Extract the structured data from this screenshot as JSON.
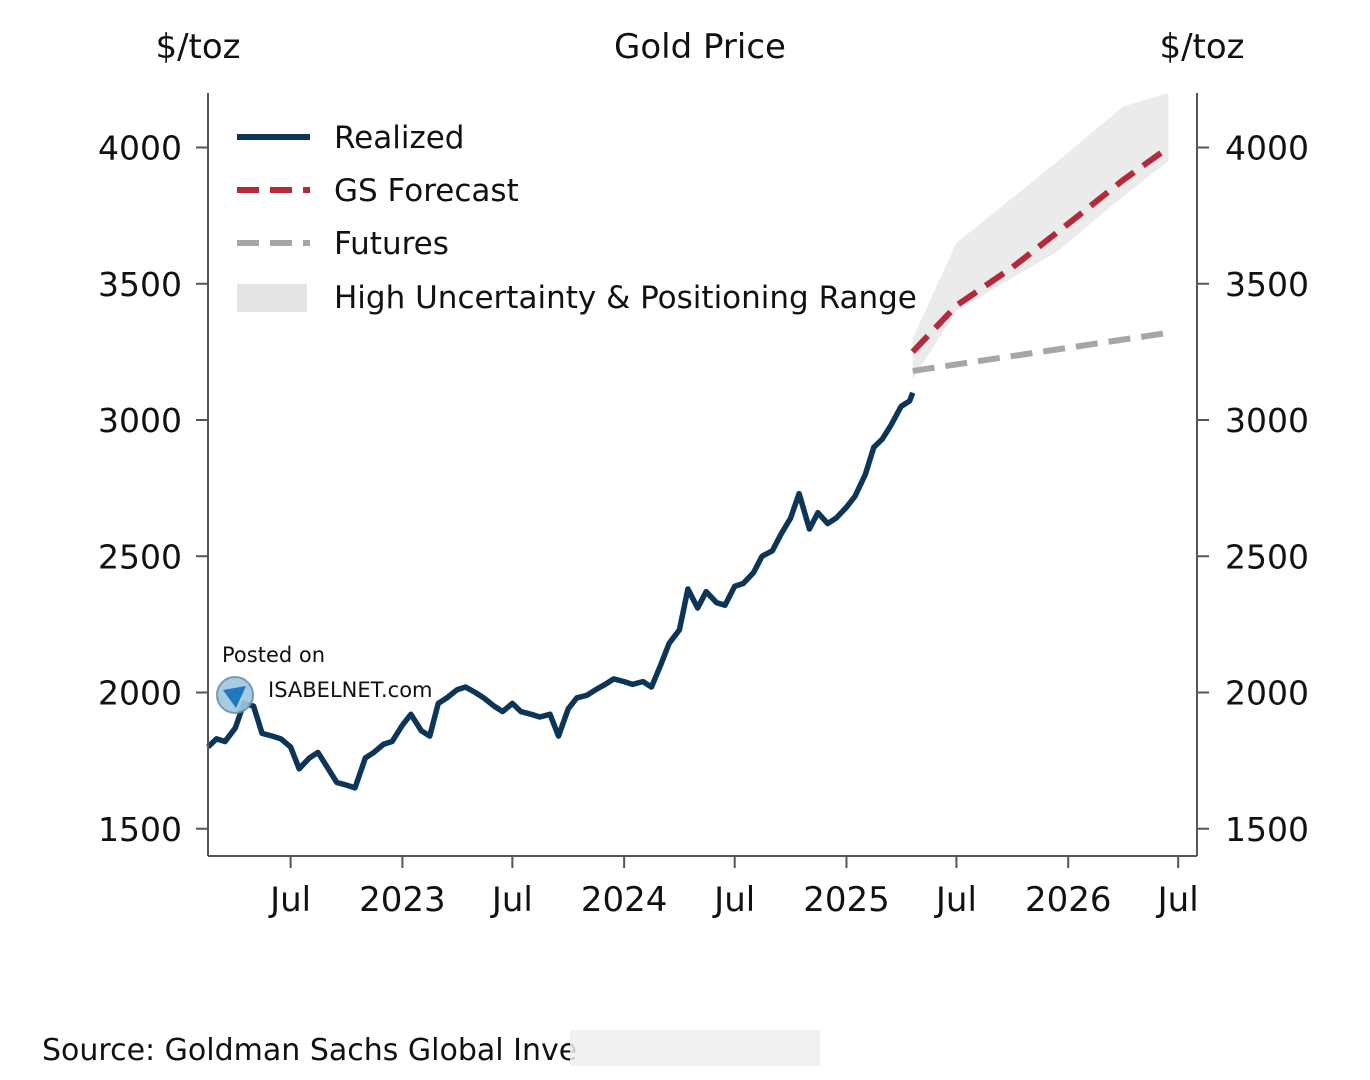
{
  "chart_data": {
    "type": "line",
    "title": "Gold Price",
    "ylabel_left": "$/toz",
    "ylabel_right": "$/toz",
    "ylim": [
      1400,
      4200
    ],
    "yticks": [
      1500,
      2000,
      2500,
      3000,
      3500,
      4000
    ],
    "xlim": [
      "2022-02-15",
      "2026-08-01"
    ],
    "xticks": [
      {
        "date": "2022-07-01",
        "label": "Jul"
      },
      {
        "date": "2023-01-01",
        "label": "2023"
      },
      {
        "date": "2023-07-01",
        "label": "Jul"
      },
      {
        "date": "2024-01-01",
        "label": "2024"
      },
      {
        "date": "2024-07-01",
        "label": "Jul"
      },
      {
        "date": "2025-01-01",
        "label": "2025"
      },
      {
        "date": "2025-07-01",
        "label": "Jul"
      },
      {
        "date": "2026-01-01",
        "label": "2026"
      },
      {
        "date": "2026-07-01",
        "label": "Jul"
      }
    ],
    "legend_position": "top-left",
    "grid": false,
    "series": [
      {
        "name": "Realized",
        "style": "solid",
        "color": "#0d3557",
        "x": [
          "2022-02-15",
          "2022-03-01",
          "2022-03-15",
          "2022-04-01",
          "2022-04-15",
          "2022-05-01",
          "2022-05-15",
          "2022-06-01",
          "2022-06-15",
          "2022-07-01",
          "2022-07-15",
          "2022-08-01",
          "2022-08-15",
          "2022-09-01",
          "2022-09-15",
          "2022-10-01",
          "2022-10-15",
          "2022-11-01",
          "2022-11-15",
          "2022-12-01",
          "2022-12-15",
          "2023-01-01",
          "2023-01-15",
          "2023-02-01",
          "2023-02-15",
          "2023-03-01",
          "2023-03-15",
          "2023-04-01",
          "2023-04-15",
          "2023-05-01",
          "2023-05-15",
          "2023-06-01",
          "2023-06-15",
          "2023-07-01",
          "2023-07-15",
          "2023-08-01",
          "2023-08-15",
          "2023-09-01",
          "2023-09-15",
          "2023-10-01",
          "2023-10-15",
          "2023-11-01",
          "2023-11-15",
          "2023-12-01",
          "2023-12-15",
          "2024-01-01",
          "2024-01-15",
          "2024-02-01",
          "2024-02-15",
          "2024-03-01",
          "2024-03-15",
          "2024-04-01",
          "2024-04-15",
          "2024-05-01",
          "2024-05-15",
          "2024-06-01",
          "2024-06-15",
          "2024-07-01",
          "2024-07-15",
          "2024-08-01",
          "2024-08-15",
          "2024-09-01",
          "2024-09-15",
          "2024-10-01",
          "2024-10-15",
          "2024-11-01",
          "2024-11-15",
          "2024-12-01",
          "2024-12-15",
          "2025-01-01",
          "2025-01-15",
          "2025-02-01",
          "2025-02-15",
          "2025-03-01",
          "2025-03-15",
          "2025-04-01",
          "2025-04-15",
          "2025-04-20"
        ],
        "y": [
          1800,
          1830,
          1820,
          1870,
          1960,
          1950,
          1850,
          1840,
          1830,
          1800,
          1720,
          1760,
          1780,
          1720,
          1670,
          1660,
          1650,
          1760,
          1780,
          1810,
          1820,
          1880,
          1920,
          1860,
          1840,
          1960,
          1980,
          2010,
          2020,
          2000,
          1980,
          1950,
          1930,
          1960,
          1930,
          1920,
          1910,
          1920,
          1840,
          1940,
          1980,
          1990,
          2010,
          2030,
          2050,
          2040,
          2030,
          2040,
          2020,
          2100,
          2180,
          2230,
          2380,
          2310,
          2370,
          2330,
          2320,
          2390,
          2400,
          2440,
          2500,
          2520,
          2580,
          2640,
          2730,
          2600,
          2660,
          2620,
          2640,
          2680,
          2720,
          2800,
          2900,
          2930,
          2980,
          3050,
          3070,
          3100
        ]
      },
      {
        "name": "GS Forecast",
        "style": "dashed",
        "color": "#b52a3a",
        "x": [
          "2025-04-20",
          "2025-07-01",
          "2025-10-01",
          "2026-01-01",
          "2026-04-01",
          "2026-06-15"
        ],
        "y": [
          3250,
          3420,
          3560,
          3720,
          3880,
          4000
        ]
      },
      {
        "name": "Futures",
        "style": "dashed",
        "color": "#a6a6a6",
        "x": [
          "2025-04-20",
          "2026-06-15"
        ],
        "y": [
          3180,
          3320
        ]
      },
      {
        "name": "High Uncertainty & Positioning Range",
        "style": "band",
        "color": "#e4e4e4",
        "x": [
          "2025-04-20",
          "2025-07-01",
          "2025-12-15",
          "2026-04-01",
          "2026-06-15"
        ],
        "y_high": [
          3300,
          3650,
          3950,
          4150,
          4200
        ],
        "y_low": [
          3150,
          3400,
          3620,
          3820,
          3950
        ]
      }
    ]
  },
  "watermark": {
    "line1": "Posted on",
    "line2": "ISABELNET.com"
  },
  "source": "Source: Goldman Sachs Global Inve",
  "colors": {
    "realized": "#0d3557",
    "forecast": "#b52a3a",
    "futures": "#a6a6a6",
    "band": "#e4e4e4",
    "axis": "#555555"
  }
}
